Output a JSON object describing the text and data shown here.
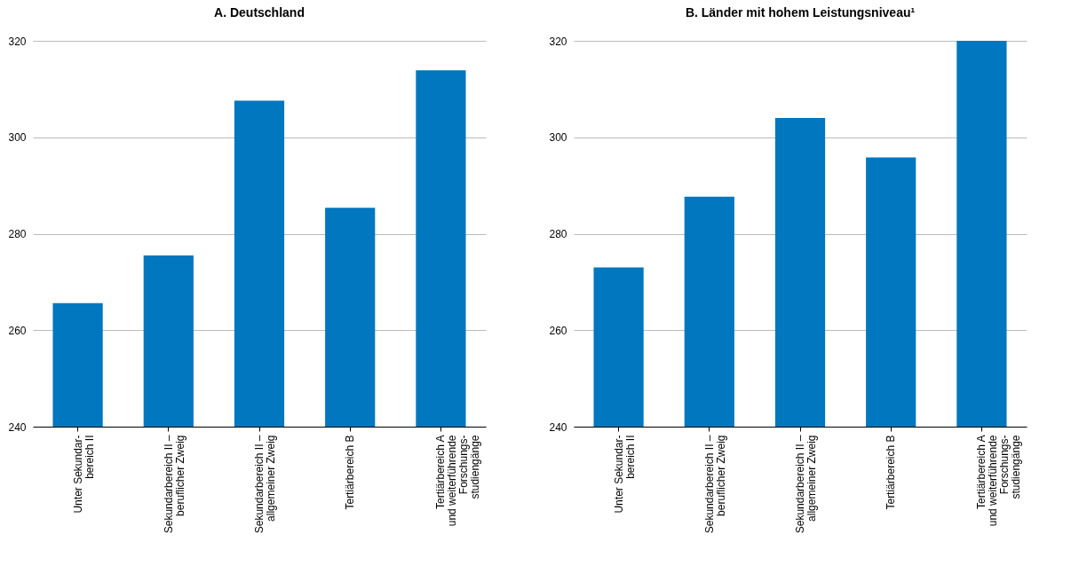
{
  "chart_data": [
    {
      "type": "bar",
      "title": "A. Deutschland",
      "categories": [
        "Unter Sekundar-\nbereich II",
        "Sekundarbereich II –\nberuflicher Zweig",
        "Sekundarbereich II –\nallgemeiner Zweig",
        "Tertiärbereich B",
        "Tertiärbereich A\nund weiterführende\nForschungs-\nstudiengänge"
      ],
      "values": [
        265.6,
        275.5,
        307.6,
        285.4,
        313.9
      ],
      "color": "#0077bf",
      "ylim": [
        240,
        320
      ],
      "yticks": [
        240,
        260,
        280,
        300,
        320
      ],
      "grid": "y"
    },
    {
      "type": "bar",
      "title": "B. Länder mit hohem Leistungsniveau¹",
      "categories": [
        "Unter Sekundar-\nbereich II",
        "Sekundarbereich II –\nberuflicher Zweig",
        "Sekundarbereich II –\nallgemeiner Zweig",
        "Tertiärbereich B",
        "Tertiärbereich A\nund weiterführende\nForschungs-\nstudiengänge"
      ],
      "values": [
        273,
        287.7,
        304,
        295.8,
        320
      ],
      "color": "#0077bf",
      "ylim": [
        240,
        320
      ],
      "yticks": [
        240,
        260,
        280,
        300,
        320
      ],
      "grid": "y"
    }
  ]
}
